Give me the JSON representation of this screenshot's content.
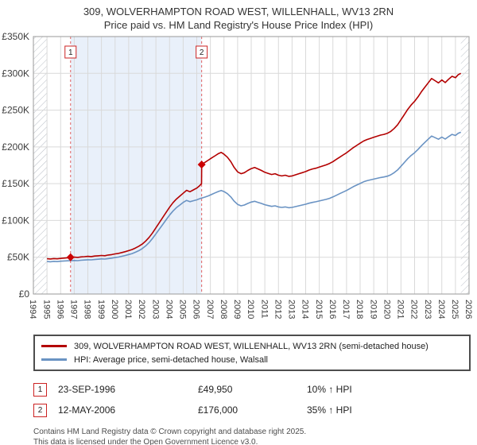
{
  "title": "309, WOLVERHAMPTON ROAD WEST, WILLENHALL, WV13 2RN",
  "subtitle": "Price paid vs. HM Land Registry's House Price Index (HPI)",
  "colors": {
    "property_line": "#b30000",
    "hpi_line": "#6a93c3",
    "sale_marker": "#cc0000",
    "dashed_line": "#e06060",
    "band_fill": "#e9f0fa",
    "grid": "#d9d9d9",
    "hatch": "#b9bec6",
    "plot_border": "#9a9a9a",
    "tick_text": "#3c3c3c",
    "number_box_border": "#cc2222"
  },
  "chart_data": {
    "type": "line",
    "title": "309, WOLVERHAMPTON ROAD WEST, WILLENHALL, WV13 2RN",
    "subtitle": "Price paid vs. HM Land Registry's House Price Index (HPI)",
    "xlabel": "",
    "ylabel": "",
    "x_range": [
      1994,
      2026
    ],
    "y_range": [
      0,
      350000
    ],
    "grid": true,
    "legend_position": "bottom",
    "x_ticks": [
      1994,
      1995,
      1996,
      1997,
      1998,
      1999,
      2000,
      2001,
      2002,
      2003,
      2004,
      2005,
      2006,
      2007,
      2008,
      2009,
      2010,
      2011,
      2012,
      2013,
      2014,
      2015,
      2016,
      2017,
      2018,
      2019,
      2020,
      2021,
      2022,
      2023,
      2024,
      2025,
      2026
    ],
    "y_tick_values": [
      0,
      50000,
      100000,
      150000,
      200000,
      250000,
      300000,
      350000
    ],
    "y_ticks": [
      "£0",
      "£50K",
      "£100K",
      "£150K",
      "£200K",
      "£250K",
      "£300K",
      "£350K"
    ],
    "shaded_band": [
      1996.73,
      2006.36
    ],
    "hatch_left": [
      1994,
      1995.0
    ],
    "hatch_right": [
      2025.4,
      2026
    ],
    "sales": [
      {
        "x": 1996.73,
        "y": 49950,
        "label": "1"
      },
      {
        "x": 2006.36,
        "y": 176000,
        "label": "2"
      }
    ],
    "series": [
      {
        "name": "309, WOLVERHAMPTON ROAD WEST, WILLENHALL, WV13 2RN (semi-detached house)",
        "color": "#b30000",
        "points": [
          [
            1995.0,
            48000
          ],
          [
            1995.25,
            47600
          ],
          [
            1995.5,
            48200
          ],
          [
            1995.75,
            47900
          ],
          [
            1996.0,
            48400
          ],
          [
            1996.25,
            48800
          ],
          [
            1996.5,
            49300
          ],
          [
            1996.73,
            49950
          ],
          [
            1997.0,
            50100
          ],
          [
            1997.25,
            49800
          ],
          [
            1997.5,
            50400
          ],
          [
            1997.75,
            50800
          ],
          [
            1998.0,
            51200
          ],
          [
            1998.25,
            50900
          ],
          [
            1998.5,
            51600
          ],
          [
            1998.75,
            52000
          ],
          [
            1999.0,
            52400
          ],
          [
            1999.25,
            52100
          ],
          [
            1999.5,
            53000
          ],
          [
            1999.75,
            53600
          ],
          [
            2000.0,
            54500
          ],
          [
            2000.25,
            55200
          ],
          [
            2000.5,
            56400
          ],
          [
            2000.75,
            57600
          ],
          [
            2001.0,
            59000
          ],
          [
            2001.25,
            60500
          ],
          [
            2001.5,
            62500
          ],
          [
            2001.75,
            65000
          ],
          [
            2002.0,
            68000
          ],
          [
            2002.25,
            72000
          ],
          [
            2002.5,
            77000
          ],
          [
            2002.75,
            83000
          ],
          [
            2003.0,
            90000
          ],
          [
            2003.25,
            97000
          ],
          [
            2003.5,
            104000
          ],
          [
            2003.75,
            111000
          ],
          [
            2004.0,
            118000
          ],
          [
            2004.25,
            124000
          ],
          [
            2004.5,
            129000
          ],
          [
            2004.75,
            133000
          ],
          [
            2005.0,
            137000
          ],
          [
            2005.25,
            141000
          ],
          [
            2005.5,
            139000
          ],
          [
            2005.75,
            141500
          ],
          [
            2006.0,
            144000
          ],
          [
            2006.2,
            147000
          ],
          [
            2006.35,
            150000
          ],
          [
            2006.36,
            176000
          ],
          [
            2006.6,
            179000
          ],
          [
            2006.85,
            182000
          ],
          [
            2007.1,
            185000
          ],
          [
            2007.35,
            188000
          ],
          [
            2007.6,
            191000
          ],
          [
            2007.8,
            192500
          ],
          [
            2008.0,
            190000
          ],
          [
            2008.25,
            186000
          ],
          [
            2008.5,
            180000
          ],
          [
            2008.75,
            172000
          ],
          [
            2009.0,
            166000
          ],
          [
            2009.25,
            163500
          ],
          [
            2009.5,
            165000
          ],
          [
            2009.75,
            168000
          ],
          [
            2010.0,
            170500
          ],
          [
            2010.25,
            172000
          ],
          [
            2010.5,
            170000
          ],
          [
            2010.75,
            168000
          ],
          [
            2011.0,
            165500
          ],
          [
            2011.25,
            164000
          ],
          [
            2011.5,
            162500
          ],
          [
            2011.75,
            163500
          ],
          [
            2012.0,
            161500
          ],
          [
            2012.25,
            160500
          ],
          [
            2012.5,
            161500
          ],
          [
            2012.75,
            160000
          ],
          [
            2013.0,
            160500
          ],
          [
            2013.25,
            162000
          ],
          [
            2013.5,
            163500
          ],
          [
            2013.75,
            165000
          ],
          [
            2014.0,
            166500
          ],
          [
            2014.25,
            168500
          ],
          [
            2014.5,
            170000
          ],
          [
            2014.75,
            171000
          ],
          [
            2015.0,
            172500
          ],
          [
            2015.25,
            174000
          ],
          [
            2015.5,
            175500
          ],
          [
            2015.75,
            177500
          ],
          [
            2016.0,
            180000
          ],
          [
            2016.25,
            183000
          ],
          [
            2016.5,
            186000
          ],
          [
            2016.75,
            189000
          ],
          [
            2017.0,
            192000
          ],
          [
            2017.25,
            195500
          ],
          [
            2017.5,
            199000
          ],
          [
            2017.75,
            202000
          ],
          [
            2018.0,
            205000
          ],
          [
            2018.25,
            208000
          ],
          [
            2018.5,
            210000
          ],
          [
            2018.75,
            211500
          ],
          [
            2019.0,
            213000
          ],
          [
            2019.25,
            214500
          ],
          [
            2019.5,
            216000
          ],
          [
            2019.75,
            217000
          ],
          [
            2020.0,
            218500
          ],
          [
            2020.25,
            221000
          ],
          [
            2020.5,
            225000
          ],
          [
            2020.75,
            230000
          ],
          [
            2021.0,
            237000
          ],
          [
            2021.25,
            244000
          ],
          [
            2021.5,
            251000
          ],
          [
            2021.75,
            257000
          ],
          [
            2022.0,
            262000
          ],
          [
            2022.25,
            268000
          ],
          [
            2022.5,
            275000
          ],
          [
            2022.75,
            281000
          ],
          [
            2023.0,
            287000
          ],
          [
            2023.25,
            293000
          ],
          [
            2023.5,
            290000
          ],
          [
            2023.75,
            287000
          ],
          [
            2024.0,
            291000
          ],
          [
            2024.25,
            287500
          ],
          [
            2024.5,
            292000
          ],
          [
            2024.75,
            296000
          ],
          [
            2025.0,
            294000
          ],
          [
            2025.2,
            298000
          ],
          [
            2025.4,
            300000
          ]
        ]
      },
      {
        "name": "HPI: Average price, semi-detached house, Walsall",
        "color": "#6a93c3",
        "points": [
          [
            1995.0,
            44200
          ],
          [
            1995.25,
            43900
          ],
          [
            1995.5,
            44400
          ],
          [
            1995.75,
            44100
          ],
          [
            1996.0,
            44600
          ],
          [
            1996.25,
            44900
          ],
          [
            1996.5,
            45200
          ],
          [
            1996.73,
            45400
          ],
          [
            1997.0,
            45600
          ],
          [
            1997.25,
            45400
          ],
          [
            1997.5,
            45900
          ],
          [
            1997.75,
            46200
          ],
          [
            1998.0,
            46600
          ],
          [
            1998.25,
            46400
          ],
          [
            1998.5,
            46900
          ],
          [
            1998.75,
            47300
          ],
          [
            1999.0,
            47700
          ],
          [
            1999.25,
            47500
          ],
          [
            1999.5,
            48200
          ],
          [
            1999.75,
            48800
          ],
          [
            2000.0,
            49600
          ],
          [
            2000.25,
            50200
          ],
          [
            2000.5,
            51300
          ],
          [
            2000.75,
            52400
          ],
          [
            2001.0,
            53700
          ],
          [
            2001.25,
            55000
          ],
          [
            2001.5,
            56800
          ],
          [
            2001.75,
            59000
          ],
          [
            2002.0,
            61800
          ],
          [
            2002.25,
            65500
          ],
          [
            2002.5,
            70000
          ],
          [
            2002.75,
            75500
          ],
          [
            2003.0,
            81800
          ],
          [
            2003.25,
            88200
          ],
          [
            2003.5,
            94500
          ],
          [
            2003.75,
            101000
          ],
          [
            2004.0,
            107300
          ],
          [
            2004.25,
            112700
          ],
          [
            2004.5,
            117300
          ],
          [
            2004.75,
            120900
          ],
          [
            2005.0,
            124500
          ],
          [
            2005.25,
            127300
          ],
          [
            2005.5,
            125500
          ],
          [
            2005.75,
            126800
          ],
          [
            2006.0,
            128000
          ],
          [
            2006.2,
            129500
          ],
          [
            2006.36,
            130400
          ],
          [
            2006.6,
            131800
          ],
          [
            2006.85,
            133400
          ],
          [
            2007.1,
            135500
          ],
          [
            2007.35,
            137500
          ],
          [
            2007.6,
            139500
          ],
          [
            2007.8,
            140800
          ],
          [
            2008.0,
            139200
          ],
          [
            2008.25,
            136400
          ],
          [
            2008.5,
            132000
          ],
          [
            2008.75,
            126200
          ],
          [
            2009.0,
            121800
          ],
          [
            2009.25,
            119900
          ],
          [
            2009.5,
            121000
          ],
          [
            2009.75,
            123200
          ],
          [
            2010.0,
            125000
          ],
          [
            2010.25,
            126100
          ],
          [
            2010.5,
            124600
          ],
          [
            2010.75,
            123200
          ],
          [
            2011.0,
            121400
          ],
          [
            2011.25,
            120200
          ],
          [
            2011.5,
            119100
          ],
          [
            2011.75,
            119900
          ],
          [
            2012.0,
            118400
          ],
          [
            2012.25,
            117700
          ],
          [
            2012.5,
            118400
          ],
          [
            2012.75,
            117300
          ],
          [
            2013.0,
            117700
          ],
          [
            2013.25,
            118800
          ],
          [
            2013.5,
            119900
          ],
          [
            2013.75,
            121000
          ],
          [
            2014.0,
            122100
          ],
          [
            2014.25,
            123500
          ],
          [
            2014.5,
            124600
          ],
          [
            2014.75,
            125400
          ],
          [
            2015.0,
            126500
          ],
          [
            2015.25,
            127600
          ],
          [
            2015.5,
            128700
          ],
          [
            2015.75,
            130100
          ],
          [
            2016.0,
            132000
          ],
          [
            2016.25,
            134200
          ],
          [
            2016.5,
            136400
          ],
          [
            2016.75,
            138600
          ],
          [
            2017.0,
            140800
          ],
          [
            2017.25,
            143300
          ],
          [
            2017.5,
            145900
          ],
          [
            2017.75,
            148100
          ],
          [
            2018.0,
            150300
          ],
          [
            2018.25,
            152500
          ],
          [
            2018.5,
            154000
          ],
          [
            2018.75,
            155100
          ],
          [
            2019.0,
            156200
          ],
          [
            2019.25,
            157300
          ],
          [
            2019.5,
            158400
          ],
          [
            2019.75,
            159100
          ],
          [
            2020.0,
            160200
          ],
          [
            2020.25,
            162000
          ],
          [
            2020.5,
            165000
          ],
          [
            2020.75,
            168600
          ],
          [
            2021.0,
            173700
          ],
          [
            2021.25,
            178900
          ],
          [
            2021.5,
            184000
          ],
          [
            2021.75,
            188400
          ],
          [
            2022.0,
            192100
          ],
          [
            2022.25,
            196500
          ],
          [
            2022.5,
            201600
          ],
          [
            2022.75,
            206000
          ],
          [
            2023.0,
            210400
          ],
          [
            2023.25,
            214800
          ],
          [
            2023.5,
            212600
          ],
          [
            2023.75,
            210400
          ],
          [
            2024.0,
            213300
          ],
          [
            2024.25,
            210700
          ],
          [
            2024.5,
            214000
          ],
          [
            2024.75,
            217000
          ],
          [
            2025.0,
            215500
          ],
          [
            2025.2,
            218400
          ],
          [
            2025.4,
            219900
          ]
        ]
      }
    ]
  },
  "legend": {
    "items": [
      {
        "label": "309, WOLVERHAMPTON ROAD WEST, WILLENHALL, WV13 2RN (semi-detached house)",
        "color": "#b30000"
      },
      {
        "label": "HPI: Average price, semi-detached house, Walsall",
        "color": "#6a93c3"
      }
    ]
  },
  "sales_table": [
    {
      "num": "1",
      "date": "23-SEP-1996",
      "price": "£49,950",
      "hpi": "10% ↑ HPI"
    },
    {
      "num": "2",
      "date": "12-MAY-2006",
      "price": "£176,000",
      "hpi": "35% ↑ HPI"
    }
  ],
  "footer": {
    "line1": "Contains HM Land Registry data © Crown copyright and database right 2025.",
    "line2": "This data is licensed under the Open Government Licence v3.0."
  }
}
